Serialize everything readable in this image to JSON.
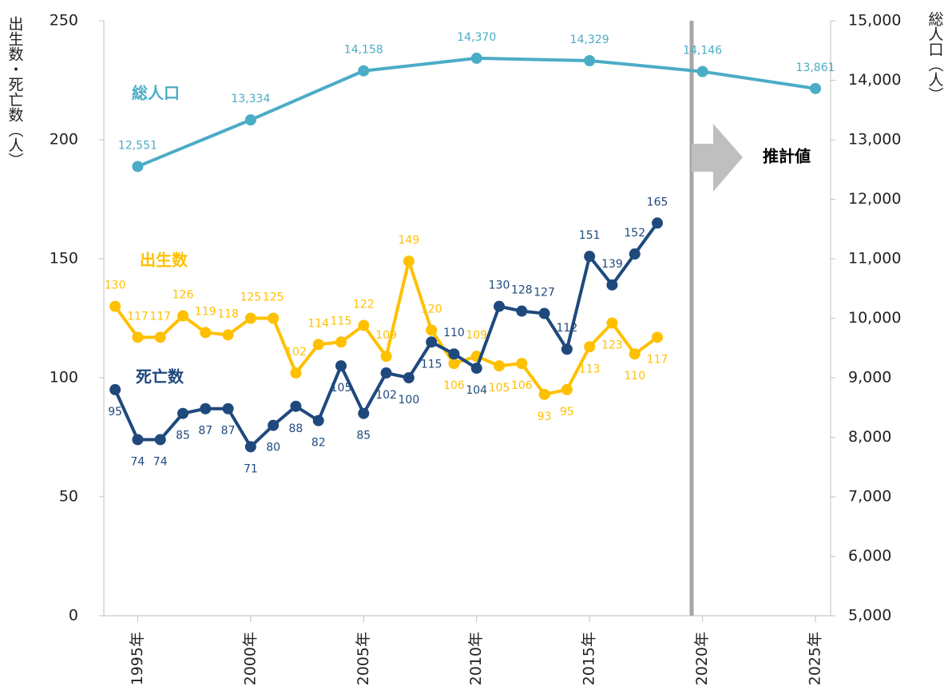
{
  "chart_data": {
    "type": "line",
    "y_label": "出生数・死亡数（人）",
    "y2_label": "総人口（人）",
    "annotation": "推計値",
    "xlim": [
      1993.5,
      2025.67
    ],
    "xticks": [
      {
        "value": 1995,
        "label": "1995年"
      },
      {
        "value": 2000,
        "label": "2000年"
      },
      {
        "value": 2005,
        "label": "2005年"
      },
      {
        "value": 2010,
        "label": "2010年"
      },
      {
        "value": 2015,
        "label": "2015年"
      },
      {
        "value": 2020,
        "label": "2020年"
      },
      {
        "value": 2025,
        "label": "2025年"
      }
    ],
    "ylim": [
      0,
      250
    ],
    "yticks": [
      0,
      50,
      100,
      150,
      200,
      250
    ],
    "y2lim": [
      5000,
      15000
    ],
    "y2ticks": [
      {
        "value": 5000,
        "label": "5,000"
      },
      {
        "value": 6000,
        "label": "6,000"
      },
      {
        "value": 7000,
        "label": "7,000"
      },
      {
        "value": 8000,
        "label": "8,000"
      },
      {
        "value": 9000,
        "label": "9,000"
      },
      {
        "value": 10000,
        "label": "10,000"
      },
      {
        "value": 11000,
        "label": "11,000"
      },
      {
        "value": 12000,
        "label": "12,000"
      },
      {
        "value": 13000,
        "label": "13,000"
      },
      {
        "value": 14000,
        "label": "14,000"
      },
      {
        "value": 15000,
        "label": "15,000"
      }
    ],
    "series": [
      {
        "name": "総人口",
        "color": "#4bacc6",
        "axis": "y2",
        "x": [
          1995,
          2000,
          2005,
          2010,
          2015,
          2020,
          2025
        ],
        "values": [
          12551,
          13334,
          14158,
          14370,
          14329,
          14146,
          13861
        ],
        "value_labels": [
          "12,551",
          "13,334",
          "14,158",
          "14,370",
          "14,329",
          "14,146",
          "13,861"
        ]
      },
      {
        "name": "出生数",
        "color": "#ffc000",
        "x": [
          1994,
          1995,
          1996,
          1997,
          1998,
          1999,
          2000,
          2001,
          2002,
          2003,
          2004,
          2005,
          2006,
          2007,
          2008,
          2009,
          2010,
          2011,
          2012,
          2013,
          2014,
          2015,
          2016,
          2017,
          2018
        ],
        "values": [
          130,
          117,
          117,
          126,
          119,
          118,
          125,
          125,
          102,
          114,
          115,
          122,
          109,
          149,
          120,
          106,
          109,
          105,
          106,
          93,
          95,
          113,
          123,
          110,
          117
        ]
      },
      {
        "name": "死亡数",
        "color": "#1f497d",
        "x": [
          1994,
          1995,
          1996,
          1997,
          1998,
          1999,
          2000,
          2001,
          2002,
          2003,
          2004,
          2005,
          2006,
          2007,
          2008,
          2009,
          2010,
          2011,
          2012,
          2013,
          2014,
          2015,
          2016,
          2017,
          2018
        ],
        "values": [
          95,
          74,
          74,
          85,
          87,
          87,
          71,
          80,
          88,
          82,
          105,
          85,
          102,
          100,
          115,
          110,
          104,
          130,
          128,
          127,
          112,
          151,
          139,
          152,
          165
        ]
      }
    ]
  }
}
